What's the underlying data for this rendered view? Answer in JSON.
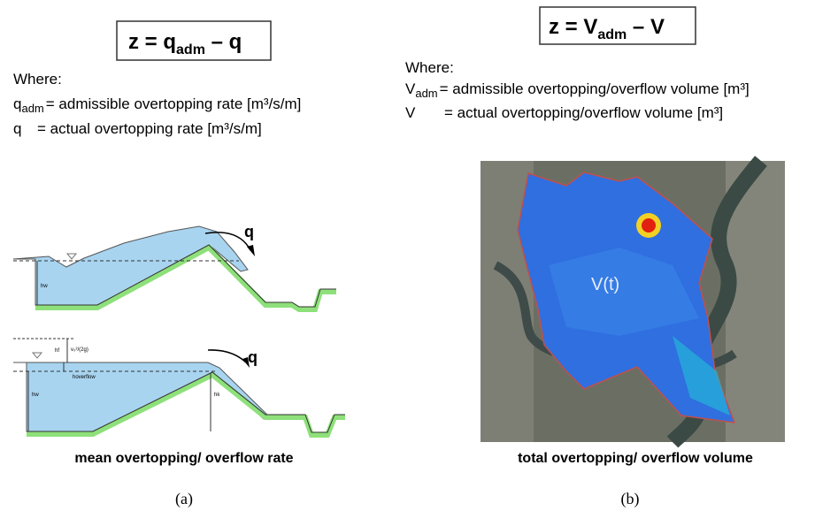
{
  "left": {
    "formula": {
      "lhs": "z = q",
      "sub": "adm",
      "rhs": " – q"
    },
    "where": "Where:",
    "definitions": [
      {
        "symbol": "q",
        "sub": "adm",
        "text": "= admissible overtopping rate [m³/s/m]"
      },
      {
        "symbol": "q",
        "text": "= actual overtopping rate [m³/s/m]"
      }
    ],
    "diagram_labels": {
      "q_top": "q",
      "q_bottom": "q",
      "hw_top": "hw",
      "hf": "hf",
      "velocity_head": "v₀²/(2g)",
      "h_overflow": "hoverflow",
      "hw_bottom": "hw",
      "hk": "hk"
    },
    "caption": "mean overtopping/ overflow rate",
    "panel": "(a)"
  },
  "right": {
    "formula": {
      "lhs": "z = V",
      "sub": "adm",
      "rhs": " – V"
    },
    "where": "Where:",
    "definitions": [
      {
        "symbol": "V",
        "sub": "adm",
        "text": "= admissible overtopping/overflow volume [m³]"
      },
      {
        "symbol": "V",
        "text": "= actual overtopping/overflow volume [m³]"
      }
    ],
    "map_label": "V(t)",
    "caption": "total overtopping/ overflow volume",
    "panel": "(b)"
  }
}
